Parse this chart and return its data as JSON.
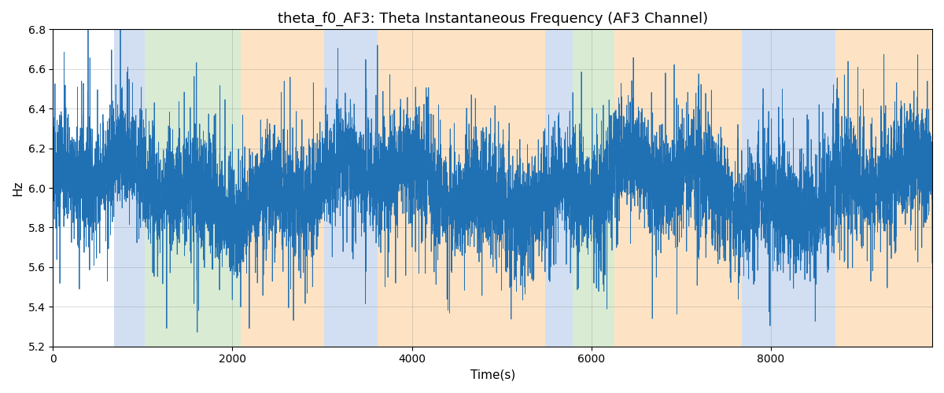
{
  "title": "theta_f0_AF3: Theta Instantaneous Frequency (AF3 Channel)",
  "xlabel": "Time(s)",
  "ylabel": "Hz",
  "ylim": [
    5.2,
    6.8
  ],
  "xlim": [
    0,
    9800
  ],
  "line_color": "#2070b4",
  "line_width": 0.6,
  "background_color": "#ffffff",
  "regions": [
    {
      "xmin": 680,
      "xmax": 1020,
      "color": "#aec6e8",
      "alpha": 0.55
    },
    {
      "xmin": 1020,
      "xmax": 2090,
      "color": "#b5d9a8",
      "alpha": 0.5
    },
    {
      "xmin": 2090,
      "xmax": 3020,
      "color": "#fdc98a",
      "alpha": 0.5
    },
    {
      "xmin": 3020,
      "xmax": 3350,
      "color": "#aec6e8",
      "alpha": 0.55
    },
    {
      "xmin": 3350,
      "xmax": 3620,
      "color": "#aec6e8",
      "alpha": 0.55
    },
    {
      "xmin": 3620,
      "xmax": 5490,
      "color": "#fdc98a",
      "alpha": 0.5
    },
    {
      "xmin": 5490,
      "xmax": 5790,
      "color": "#aec6e8",
      "alpha": 0.55
    },
    {
      "xmin": 5790,
      "xmax": 6260,
      "color": "#b5d9a8",
      "alpha": 0.5
    },
    {
      "xmin": 6260,
      "xmax": 7680,
      "color": "#fdc98a",
      "alpha": 0.5
    },
    {
      "xmin": 7680,
      "xmax": 8720,
      "color": "#aec6e8",
      "alpha": 0.55
    },
    {
      "xmin": 8720,
      "xmax": 9800,
      "color": "#fdc98a",
      "alpha": 0.5
    }
  ],
  "seed": 12345,
  "n_points": 9800,
  "mean_freq": 6.0,
  "noise_std": 0.13,
  "slow_amp1": 0.1,
  "slow_period1": 3000,
  "slow_amp2": 0.07,
  "slow_period2": 800,
  "spike_std": 0.22,
  "spike_prob": 0.15
}
